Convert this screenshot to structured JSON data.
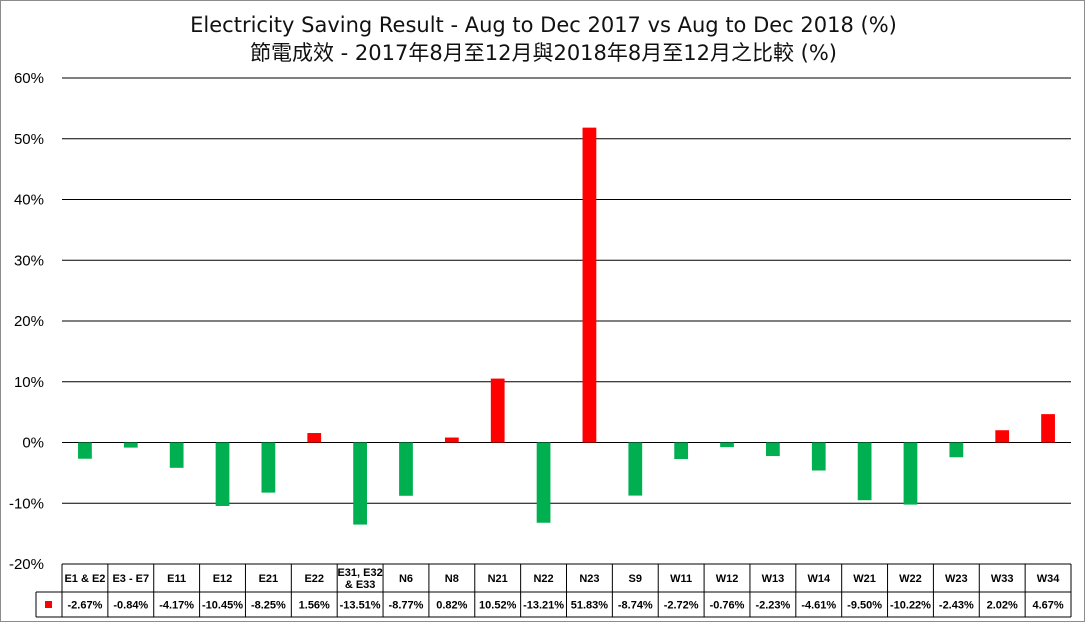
{
  "colors": {
    "positive": "#ff0000",
    "negative": "#00b050",
    "grid": "#000000"
  },
  "legend_key": "red-square-key",
  "chart_data": {
    "type": "bar",
    "title": "Electricity Saving Result - Aug to Dec 2017 vs Aug to Dec 2018 (%)",
    "subtitle": "節電成效 - 2017年8月至12月與2018年8月至12月之比較 (%)",
    "ylim": [
      -20,
      60
    ],
    "yticks": [
      60,
      50,
      40,
      30,
      20,
      10,
      0,
      -10,
      -20
    ],
    "ytick_labels": [
      "60%",
      "50%",
      "40%",
      "30%",
      "20%",
      "10%",
      "0%",
      "-10%",
      "-20%"
    ],
    "grid": true,
    "categories": [
      "E1 & E2",
      "E3 - E7",
      "E11",
      "E12",
      "E21",
      "E22",
      "E31, E32 & E33",
      "N6",
      "N8",
      "N21",
      "N22",
      "N23",
      "S9",
      "W11",
      "W12",
      "W13",
      "W14",
      "W21",
      "W22",
      "W23",
      "W33",
      "W34"
    ],
    "category_lines": [
      [
        "E1 & E2"
      ],
      [
        "E3 - E7"
      ],
      [
        "E11"
      ],
      [
        "E12"
      ],
      [
        "E21"
      ],
      [
        "E22"
      ],
      [
        "E31, E32",
        "& E33"
      ],
      [
        "N6"
      ],
      [
        "N8"
      ],
      [
        "N21"
      ],
      [
        "N22"
      ],
      [
        "N23"
      ],
      [
        "S9"
      ],
      [
        "W11"
      ],
      [
        "W12"
      ],
      [
        "W13"
      ],
      [
        "W14"
      ],
      [
        "W21"
      ],
      [
        "W22"
      ],
      [
        "W23"
      ],
      [
        "W33"
      ],
      [
        "W34"
      ]
    ],
    "values": [
      -2.67,
      -0.84,
      -4.17,
      -10.45,
      -8.25,
      1.56,
      -13.51,
      -8.77,
      0.82,
      10.52,
      -13.21,
      51.83,
      -8.74,
      -2.72,
      -0.76,
      -2.23,
      -4.61,
      -9.5,
      -10.22,
      -2.43,
      2.02,
      4.67
    ],
    "value_labels": [
      "-2.67%",
      "-0.84%",
      "-4.17%",
      "-10.45%",
      "-8.25%",
      "1.56%",
      "-13.51%",
      "-8.77%",
      "0.82%",
      "10.52%",
      "-13.21%",
      "51.83%",
      "-8.74%",
      "-2.72%",
      "-0.76%",
      "-2.23%",
      "-4.61%",
      "-9.50%",
      "-10.22%",
      "-2.43%",
      "2.02%",
      "4.67%"
    ]
  }
}
